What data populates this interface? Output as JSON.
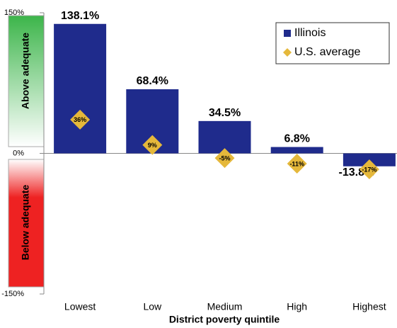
{
  "chart_data": {
    "type": "bar",
    "xlabel": "District poverty quintile",
    "annotations": [
      "Above adequate",
      "Below adequate"
    ],
    "categories": [
      "Lowest",
      "Low",
      "Medium",
      "High",
      "Highest"
    ],
    "series": [
      {
        "name": "Illinois",
        "type": "bar",
        "color": "#1f2b8c",
        "values": [
          138.1,
          68.4,
          34.5,
          6.8,
          -13.8
        ],
        "value_labels": [
          "138.1%",
          "68.4%",
          "34.5%",
          "6.8%",
          "-13.8%"
        ]
      },
      {
        "name": "U.S. average",
        "type": "diamond",
        "color": "#e5b83b",
        "values": [
          36,
          9,
          -5,
          -11,
          -17
        ],
        "value_labels": [
          "36%",
          "9%",
          "-5%",
          "-11%",
          "-17%"
        ]
      }
    ],
    "ylim": [
      -150,
      150
    ],
    "yticks": [
      {
        "value": -150,
        "label": "-150%"
      },
      {
        "value": 0,
        "label": "0%"
      },
      {
        "value": 150,
        "label": "150%"
      }
    ],
    "legend": "upper right"
  }
}
